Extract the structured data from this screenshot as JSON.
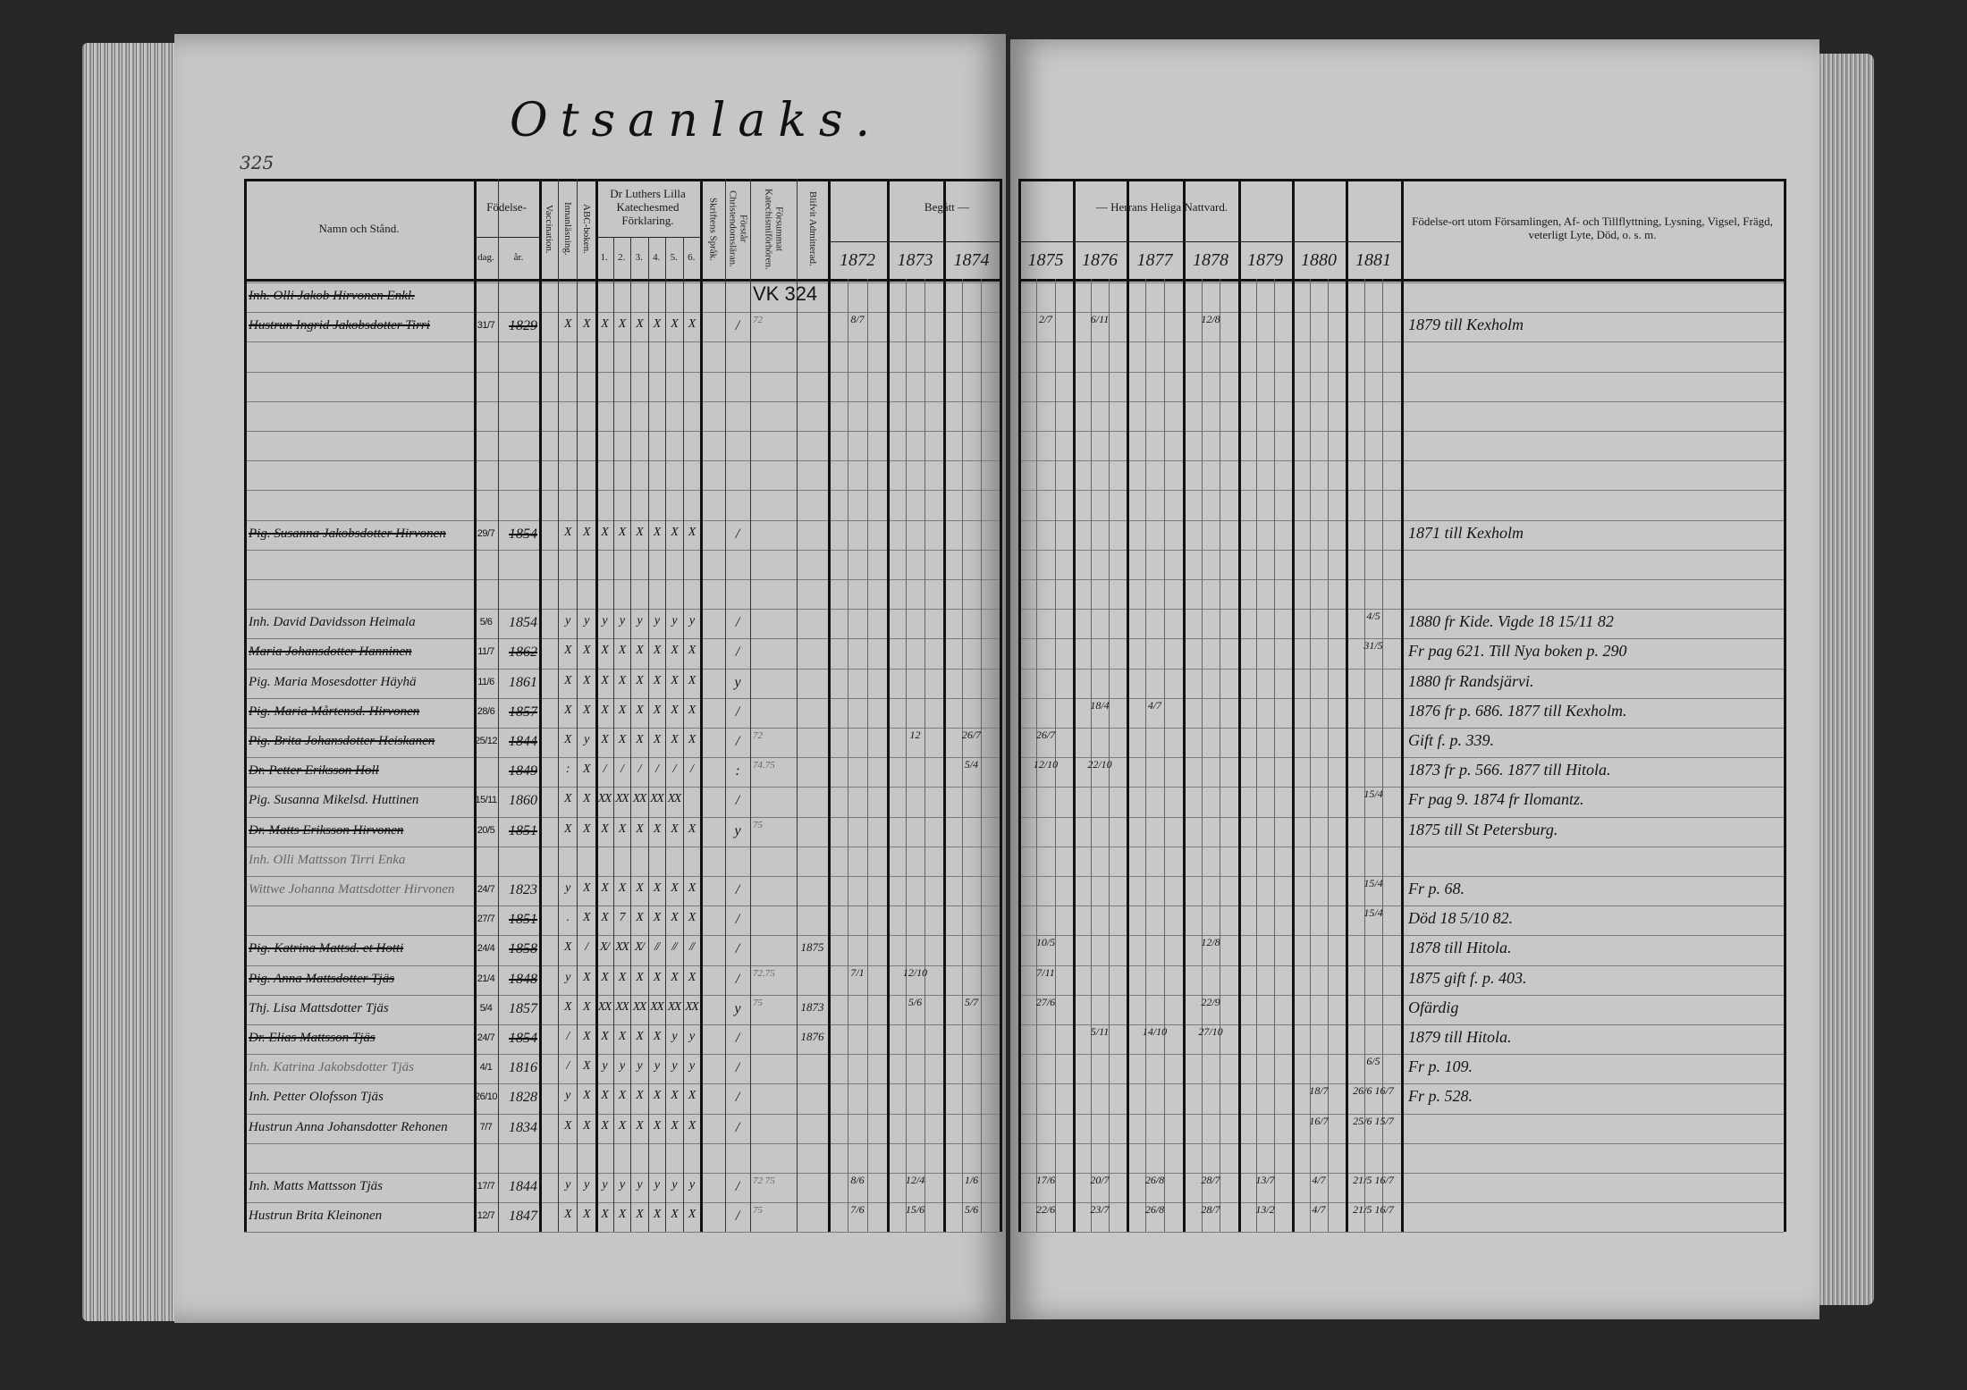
{
  "page_number": "325",
  "title": "Otsanlaks.",
  "headers": {
    "name": "Namn och Stånd.",
    "fodelse": "Födelse-",
    "dag": "dag.",
    "ar": "år.",
    "vaccination": "Vaccination.",
    "innanlasning": "Innanläsning.",
    "abc": "ABC-boken.",
    "katekes": "Dr Luthers Lilla Katechesmed Förklaring.",
    "katekes_parts": [
      "1.",
      "2.",
      "3.",
      "4.",
      "5.",
      "6."
    ],
    "skriftens": "Skriftens Språk.",
    "forstar": "Förstår Christendomsläran.",
    "forsummat": "Försummat Katechismiförhören.",
    "blifvit": "Blifvit Admitterad.",
    "begatt": "Begått —",
    "nattvard": "— Herrans Heliga Nattvard.",
    "years_left": [
      "1872",
      "1873",
      "1874"
    ],
    "years_right": [
      "1875",
      "1876",
      "1877",
      "1878",
      "1879",
      "1880",
      "1881"
    ],
    "notes": "Födelse-ort utom Församlingen, Af- och Tillflyttning, Lysning, Vigsel, Frägd, veterligt Lyte, Död, o. s. m."
  },
  "rows": [
    {
      "row": 0,
      "name": "Inh. Olli Jakob Hirvonen Enkl.",
      "struck": true,
      "forsummat": "VK 324"
    },
    {
      "row": 1,
      "name": "Hustrun Ingrid Jakobsdotter Tirri",
      "struck": true,
      "dag": "31/7",
      "ar": "1829",
      "marks": [
        "X",
        "X",
        "X",
        "X",
        "X",
        "X",
        "X",
        "X"
      ],
      "forstar": "/",
      "forsummat_small": "72",
      "communion": {
        "1872": "8/7",
        "1875": "2/7",
        "1876": "6/11",
        "1878": "12/8"
      },
      "note": "1879 till Kexholm"
    },
    {
      "row": 8,
      "name": "Pig. Susanna Jakobsdotter Hirvonen",
      "struck": true,
      "dag": "29/7",
      "ar": "1854",
      "marks": [
        "X",
        "X",
        "X",
        "X",
        "X",
        "X",
        "X",
        "X"
      ],
      "forstar": "/",
      "note": "1871 till Kexholm"
    },
    {
      "row": 11,
      "name": "Inh. David Davidsson Heimala",
      "dag": "5/6",
      "ar": "1854",
      "marks": [
        "y",
        "y",
        "y",
        "y",
        "y",
        "y",
        "y",
        "y"
      ],
      "forstar": "/",
      "communion": {
        "1881": "4/5"
      },
      "note": "1880 fr Kide.   Vigde 18 15/11 82"
    },
    {
      "row": 12,
      "name": "Maria Johansdotter Hanninen",
      "struck": true,
      "dag": "11/7",
      "ar": "1862",
      "marks": [
        "X",
        "X",
        "X",
        "X",
        "X",
        "X",
        "X",
        "X"
      ],
      "forstar": "/",
      "communion": {
        "1881": "31/5"
      },
      "note": "Fr pag 621.   Till Nya boken p. 290"
    },
    {
      "row": 13,
      "name": "Pig. Maria Mosesdotter Häyhä",
      "dag": "11/6",
      "ar": "1861",
      "marks": [
        "X",
        "X",
        "X",
        "X",
        "X",
        "X",
        "X",
        "X"
      ],
      "forstar": "y",
      "note": "1880 fr Randsjärvi."
    },
    {
      "row": 14,
      "name": "Pig. Maria Mårtensd. Hirvonen",
      "struck": true,
      "dag": "28/6",
      "ar": "1857",
      "marks": [
        "X",
        "X",
        "X",
        "X",
        "X",
        "X",
        "X",
        "X"
      ],
      "forstar": "/",
      "communion": {
        "1876": "18/4",
        "1877": "4/7"
      },
      "note": "1876 fr p. 686.   1877 till Kexholm."
    },
    {
      "row": 15,
      "name": "Pig. Brita Johansdotter Heiskanen",
      "struck": true,
      "dag": "25/12",
      "ar": "1844",
      "marks": [
        "X",
        "y",
        "X",
        "X",
        "X",
        "X",
        "X",
        "X"
      ],
      "forstar": "/",
      "forsummat_small": "72",
      "communion": {
        "1873": "12",
        "1874": "26/7",
        "1875": "26/7"
      },
      "note": "Gift f. p. 339."
    },
    {
      "row": 16,
      "name": "Dr. Petter Eriksson Holl",
      "struck": true,
      "ar": "1849",
      "marks": [
        ":",
        "X",
        "/",
        "/",
        "/",
        "/",
        "/",
        "/"
      ],
      "forstar": ":",
      "forsummat_small": "74.75",
      "communion": {
        "1874": "5/4",
        "1875": "12/10",
        "1876": "22/10"
      },
      "note": "1873 fr p. 566.   1877 till Hitola."
    },
    {
      "row": 17,
      "name": "Pig. Susanna Mikelsd. Huttinen",
      "dag": "15/11",
      "ar": "1860",
      "marks": [
        "X",
        "X",
        "XX",
        "XX",
        "XX",
        "XX",
        "XX",
        ""
      ],
      "forstar": "/",
      "communion": {
        "1881": "15/4"
      },
      "note": "Fr pag 9. 1874 fr Ilomantz."
    },
    {
      "row": 18,
      "name": "Dr. Matts Eriksson Hirvonen",
      "struck": true,
      "dag": "20/5",
      "ar": "1851",
      "marks": [
        "X",
        "X",
        "X",
        "X",
        "X",
        "X",
        "X",
        "X"
      ],
      "forstar": "y",
      "forsummat_small": "75",
      "note": "1875 till St Petersburg."
    },
    {
      "row": 19,
      "name": "Inh. Olli Mattsson Tirri Enka",
      "faint": true
    },
    {
      "row": 20,
      "name": "Wittwe Johanna Mattsdotter Hirvonen",
      "faint": true,
      "dag": "24/7",
      "ar": "1823",
      "marks": [
        "y",
        "X",
        "X",
        "X",
        "X",
        "X",
        "X",
        "X"
      ],
      "forstar": "/",
      "communion": {
        "1881": "15/4"
      },
      "note": "Fr p. 68."
    },
    {
      "row": 21,
      "name": "",
      "struck": true,
      "dag": "27/7",
      "ar": "1851",
      "marks": [
        ".",
        "X",
        "X",
        "7",
        "X",
        "X",
        "X",
        "X"
      ],
      "forstar": "/",
      "communion": {
        "1881": "15/4"
      },
      "note": "Död 18 5/10 82."
    },
    {
      "row": 22,
      "name": "Pig. Katrina Mattsd. et Hotti",
      "struck": true,
      "dag": "24/4",
      "ar": "1858",
      "marks": [
        "X",
        "/",
        "X/",
        "XX",
        "X/",
        "//",
        "//",
        "//"
      ],
      "forstar": "/",
      "blifvit": "1875",
      "communion": {
        "1875": "10/5",
        "1878": "12/8"
      },
      "note": "1878 till Hitola."
    },
    {
      "row": 23,
      "name": "Pig. Anna Mattsdotter Tjäs",
      "struck": true,
      "dag": "21/4",
      "ar": "1848",
      "marks": [
        "y",
        "X",
        "X",
        "X",
        "X",
        "X",
        "X",
        "X"
      ],
      "forstar": "/",
      "forsummat_small": "72.75",
      "communion": {
        "1872": "7/1",
        "1873": "12/10",
        "1875": "7/11"
      },
      "note": "1875 gift f. p. 403."
    },
    {
      "row": 24,
      "name": "Thj. Lisa Mattsdotter Tjäs",
      "dag": "5/4",
      "ar": "1857",
      "marks": [
        "X",
        "X",
        "XX",
        "XX",
        "XX",
        "XX",
        "XX",
        "XX"
      ],
      "forstar": "y",
      "forsummat_small": "75",
      "blifvit": "1873",
      "communion": {
        "1873": "5/6",
        "1874": "5/7",
        "1875": "27/6",
        "1878": "22/9"
      },
      "note": "Ofärdig"
    },
    {
      "row": 25,
      "name": "Dr. Elias Mattsson Tjäs",
      "struck": true,
      "dag": "24/7",
      "ar": "1854",
      "marks": [
        "/",
        "X",
        "X",
        "X",
        "X",
        "X",
        "y",
        "y"
      ],
      "forstar": "/",
      "blifvit": "1876",
      "communion": {
        "1876": "5/11",
        "1877": "14/10",
        "1878": "27/10"
      },
      "note": "1879 till Hitola."
    },
    {
      "row": 26,
      "name": "Inh. Katrina Jakobsdotter Tjäs",
      "faint": true,
      "dag": "4/1",
      "ar": "1816",
      "marks": [
        "/",
        "X",
        "y",
        "y",
        "y",
        "y",
        "y",
        "y"
      ],
      "forstar": "/",
      "communion": {
        "1881": "6/5"
      },
      "note": "Fr p. 109."
    },
    {
      "row": 27,
      "name": "Inh. Petter Olofsson Tjäs",
      "dag": "26/10",
      "ar": "1828",
      "marks": [
        "y",
        "X",
        "X",
        "X",
        "X",
        "X",
        "X",
        "X"
      ],
      "forstar": "/",
      "communion": {
        "1880": "18/7",
        "1881": "26/6 16/7"
      },
      "note": "Fr p. 528."
    },
    {
      "row": 28,
      "name": "Hustrun Anna Johansdotter Rehonen",
      "dag": "7/7",
      "ar": "1834",
      "marks": [
        "X",
        "X",
        "X",
        "X",
        "X",
        "X",
        "X",
        "X"
      ],
      "forstar": "/",
      "communion": {
        "1880": "16/7",
        "1881": "25/6 15/7"
      }
    },
    {
      "row": 30,
      "name": "Inh. Matts Mattsson Tjäs",
      "dag": "17/7",
      "ar": "1844",
      "marks": [
        "y",
        "y",
        "y",
        "y",
        "y",
        "y",
        "y",
        "y"
      ],
      "forstar": "/",
      "forsummat_small": "72 75",
      "communion": {
        "1872": "8/6",
        "1873": "12/4",
        "1874": "1/6",
        "1875": "17/6",
        "1876": "20/7",
        "1877": "26/8",
        "1878": "28/7",
        "1879": "13/7",
        "1880": "4/7",
        "1881": "21/5 16/7"
      }
    },
    {
      "row": 31,
      "name": "Hustrun Brita Kleinonen",
      "dag": "12/7",
      "ar": "1847",
      "marks": [
        "X",
        "X",
        "X",
        "X",
        "X",
        "X",
        "X",
        "X"
      ],
      "forstar": "/",
      "forsummat_small": "75",
      "communion": {
        "1872": "7/6",
        "1873": "15/6",
        "1874": "5/6",
        "1875": "22/6",
        "1876": "23/7",
        "1877": "26/8",
        "1878": "28/7",
        "1879": "13/2",
        "1880": "4/7",
        "1881": "21/5 16/7"
      }
    }
  ]
}
